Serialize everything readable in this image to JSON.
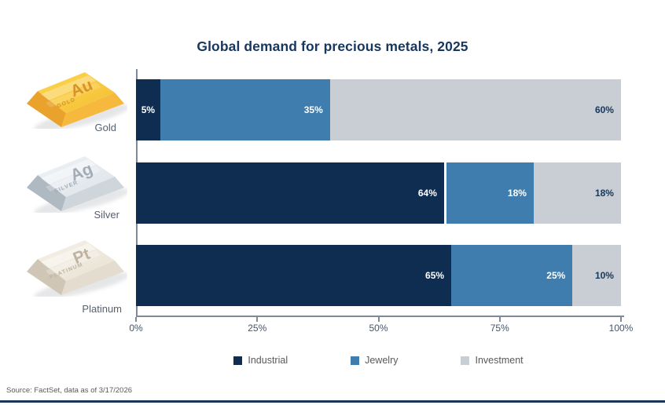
{
  "title": "Global demand for precious metals, 2025",
  "source_note": "Source: FactSet, data as of 3/17/2026",
  "metals": [
    {
      "name": "Gold",
      "symbol": "Au",
      "caption": "GOLD"
    },
    {
      "name": "Silver",
      "symbol": "Ag",
      "caption": "SILVER"
    },
    {
      "name": "Platinum",
      "symbol": "Pt",
      "caption": "PLATINUM"
    }
  ],
  "colors": {
    "industrial": "#0F2D50",
    "jewelry": "#3E7DAD",
    "investment": "#C9CED4",
    "title_text": "#17375E",
    "axis_line": "#7E8A97",
    "axis_text": "#44546A",
    "metal_label_text": "#566170",
    "legend_text": "#595959",
    "label_on_light_segment": "#16365C",
    "bottom_rule": "#16365C"
  },
  "chart_data": {
    "type": "bar",
    "orientation": "horizontal",
    "stacked": true,
    "title": "Global demand for precious metals, 2025",
    "categories": [
      "Gold",
      "Silver",
      "Platinum"
    ],
    "series": [
      {
        "name": "Industrial",
        "color": "#0F2D50",
        "label_color": "#FFFFFF",
        "values": [
          5,
          64,
          65
        ]
      },
      {
        "name": "Jewelry",
        "color": "#3E7DAD",
        "label_color": "#FFFFFF",
        "values": [
          35,
          18,
          25
        ]
      },
      {
        "name": "Investment",
        "color": "#C9CED4",
        "label_color": "#16365C",
        "values": [
          60,
          18,
          10
        ]
      }
    ],
    "value_suffix": "%",
    "x_ticks": [
      "0%",
      "25%",
      "50%",
      "75%",
      "100%"
    ],
    "xlim": [
      0,
      100
    ],
    "grid": false,
    "legend_position": "bottom"
  }
}
